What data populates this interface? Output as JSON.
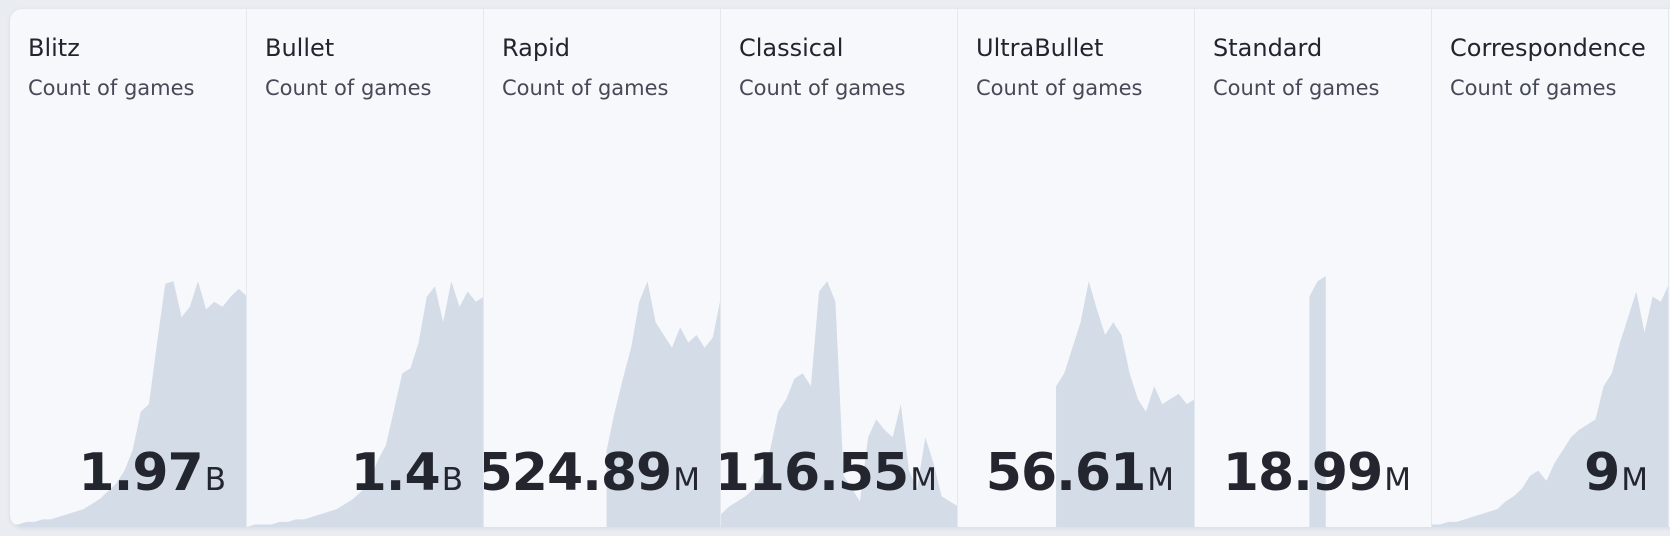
{
  "cards": [
    {
      "title": "Blitz",
      "subtitle": "Count of games",
      "value": 1.97,
      "unit": "B",
      "trend": [
        1,
        1,
        2,
        2,
        3,
        3,
        4,
        5,
        6,
        7,
        9,
        11,
        14,
        17,
        22,
        30,
        45,
        48,
        72,
        95,
        96,
        82,
        86,
        96,
        85,
        88,
        86,
        90,
        93,
        90
      ]
    },
    {
      "title": "Bullet",
      "subtitle": "Count of games",
      "value": 1.4,
      "unit": "B",
      "trend": [
        0,
        1,
        1,
        1,
        2,
        2,
        3,
        3,
        4,
        5,
        6,
        7,
        9,
        11,
        14,
        18,
        26,
        32,
        46,
        60,
        62,
        72,
        90,
        94,
        80,
        96,
        86,
        92,
        88,
        90
      ]
    },
    {
      "title": "Rapid",
      "subtitle": "Count of games",
      "value": 524.89,
      "unit": "M",
      "trend": [
        null,
        null,
        null,
        null,
        null,
        null,
        null,
        null,
        null,
        null,
        null,
        null,
        null,
        null,
        null,
        30,
        45,
        58,
        70,
        88,
        96,
        80,
        75,
        70,
        78,
        72,
        75,
        70,
        74,
        90
      ]
    },
    {
      "title": "Classical",
      "subtitle": "Count of games",
      "value": 116.55,
      "unit": "M",
      "trend": [
        5,
        8,
        10,
        12,
        15,
        20,
        30,
        45,
        50,
        58,
        60,
        55,
        92,
        96,
        88,
        20,
        15,
        10,
        35,
        42,
        38,
        35,
        48,
        22,
        15,
        35,
        25,
        12,
        10,
        8
      ]
    },
    {
      "title": "UltraBullet",
      "subtitle": "Count of games",
      "value": 56.61,
      "unit": "M",
      "trend": [
        null,
        null,
        null,
        null,
        null,
        null,
        null,
        null,
        null,
        null,
        null,
        null,
        55,
        60,
        70,
        80,
        96,
        85,
        75,
        80,
        75,
        60,
        50,
        45,
        55,
        48,
        50,
        52,
        48,
        50
      ]
    },
    {
      "title": "Standard",
      "subtitle": "Count of games",
      "value": 18.99,
      "unit": "M",
      "trend": [
        null,
        null,
        null,
        null,
        null,
        null,
        null,
        null,
        null,
        null,
        null,
        null,
        null,
        null,
        90,
        96,
        98,
        null,
        null,
        null,
        null,
        null,
        null,
        null,
        null,
        null,
        null,
        null,
        null,
        null
      ]
    },
    {
      "title": "Correspondence",
      "subtitle": "Count of games",
      "value": 9,
      "unit": "M",
      "trend": [
        1,
        1,
        2,
        2,
        3,
        4,
        5,
        6,
        7,
        10,
        12,
        15,
        20,
        22,
        18,
        25,
        30,
        35,
        38,
        40,
        42,
        55,
        60,
        72,
        82,
        92,
        76,
        90,
        88,
        95
      ]
    }
  ]
}
